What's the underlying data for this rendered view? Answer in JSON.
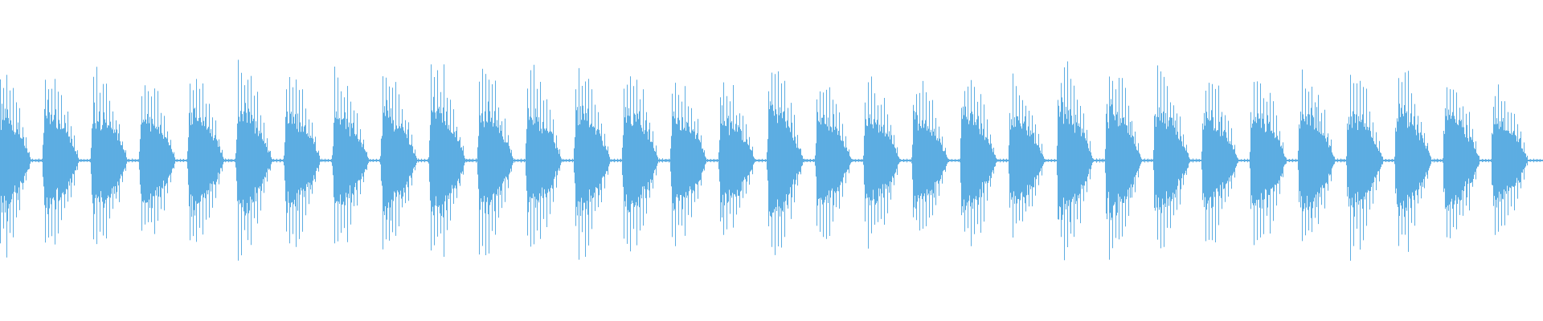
{
  "chart_data": {
    "type": "area",
    "title": "",
    "xlabel": "",
    "ylabel": "",
    "ylim": [
      -1,
      1
    ],
    "grid": false,
    "axes_visible": false,
    "color": "#5dade2",
    "background": "#ffffff",
    "burst_count": 32,
    "burst_peak_amplitudes": [
      0.62,
      0.6,
      0.58,
      0.55,
      0.58,
      0.6,
      0.58,
      0.55,
      0.58,
      0.66,
      0.6,
      0.58,
      0.6,
      0.62,
      0.55,
      0.52,
      0.62,
      0.56,
      0.55,
      0.52,
      0.6,
      0.52,
      0.64,
      0.62,
      0.6,
      0.55,
      0.58,
      0.62,
      0.6,
      0.6,
      0.58,
      0.52
    ]
  }
}
